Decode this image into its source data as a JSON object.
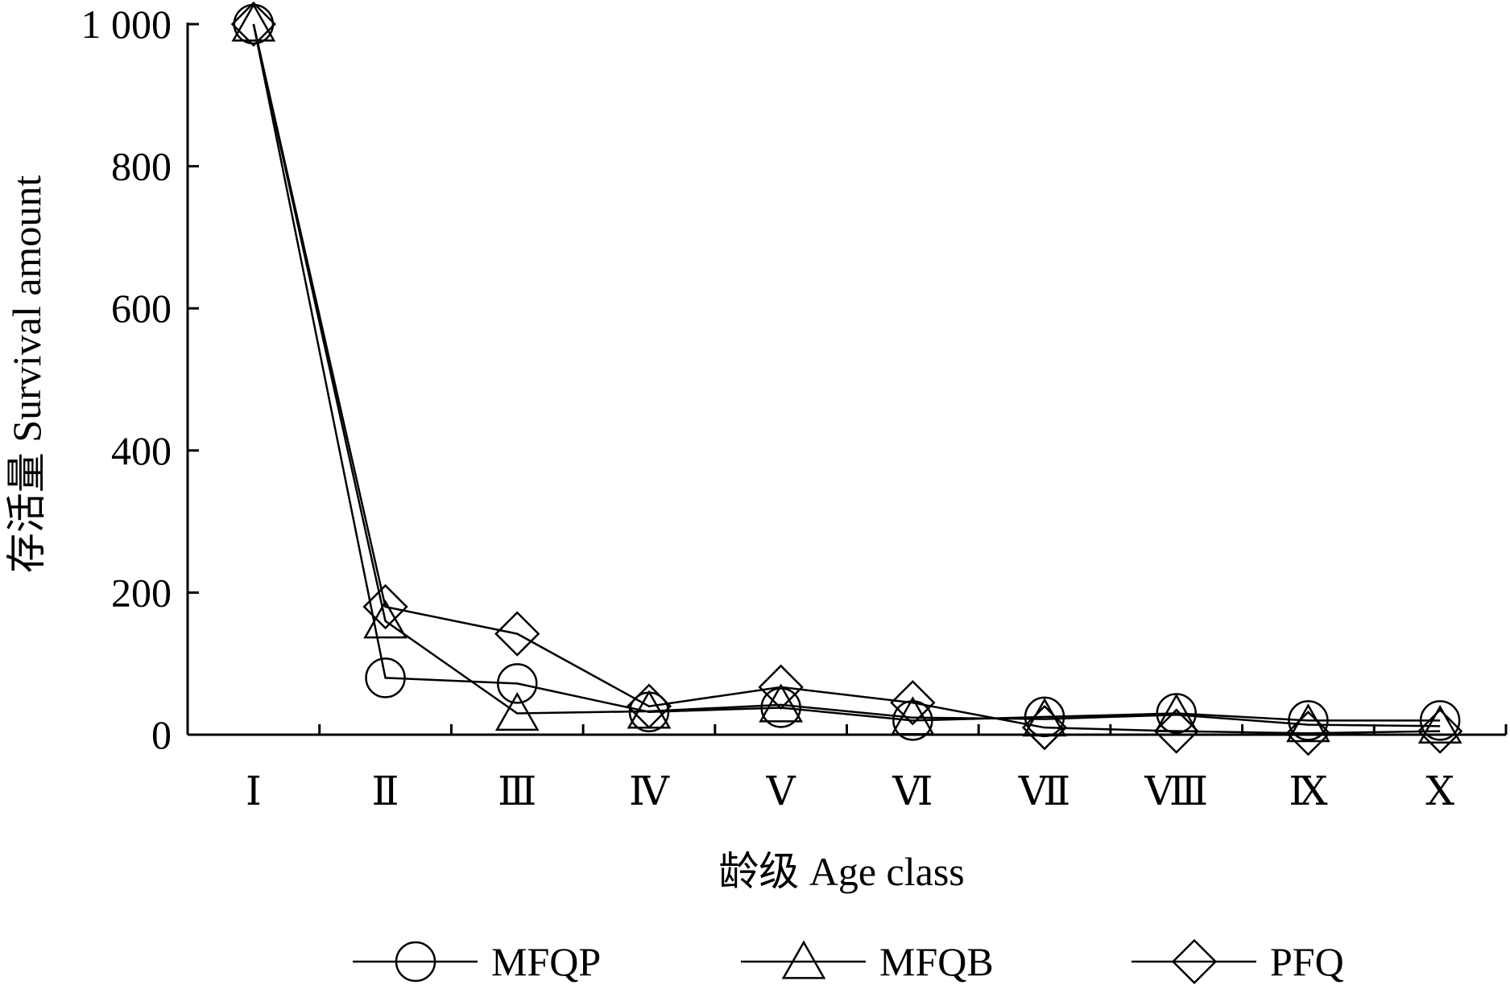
{
  "chart_data": {
    "type": "line",
    "categories": [
      "I",
      "II",
      "III",
      "IV",
      "V",
      "VI",
      "VII",
      "VIII",
      "IX",
      "X"
    ],
    "category_labels": [
      "Ⅰ",
      "Ⅱ",
      "Ⅲ",
      "Ⅳ",
      "Ⅴ",
      "Ⅵ",
      "Ⅶ",
      "Ⅷ",
      "Ⅸ",
      "Ⅹ"
    ],
    "series": [
      {
        "name": "MFQP",
        "marker": "circle",
        "values": [
          1000,
          80,
          72,
          32,
          38,
          20,
          25,
          30,
          20,
          20
        ]
      },
      {
        "name": "MFQB",
        "marker": "triangle",
        "values": [
          1000,
          160,
          30,
          33,
          42,
          24,
          22,
          28,
          14,
          12
        ]
      },
      {
        "name": "PFQ",
        "marker": "diamond",
        "values": [
          1000,
          180,
          142,
          40,
          67,
          45,
          10,
          5,
          2,
          5
        ]
      }
    ],
    "xlabel": "龄级  Age class",
    "ylabel": "存活量  Survival amount",
    "ylim": [
      0,
      1000
    ],
    "yticks": [
      0,
      200,
      400,
      600,
      800,
      1000
    ],
    "ytick_labels": [
      "0",
      "200",
      "400",
      "600",
      "800",
      "1 000"
    ],
    "grid": false,
    "legend_position": "bottom"
  }
}
